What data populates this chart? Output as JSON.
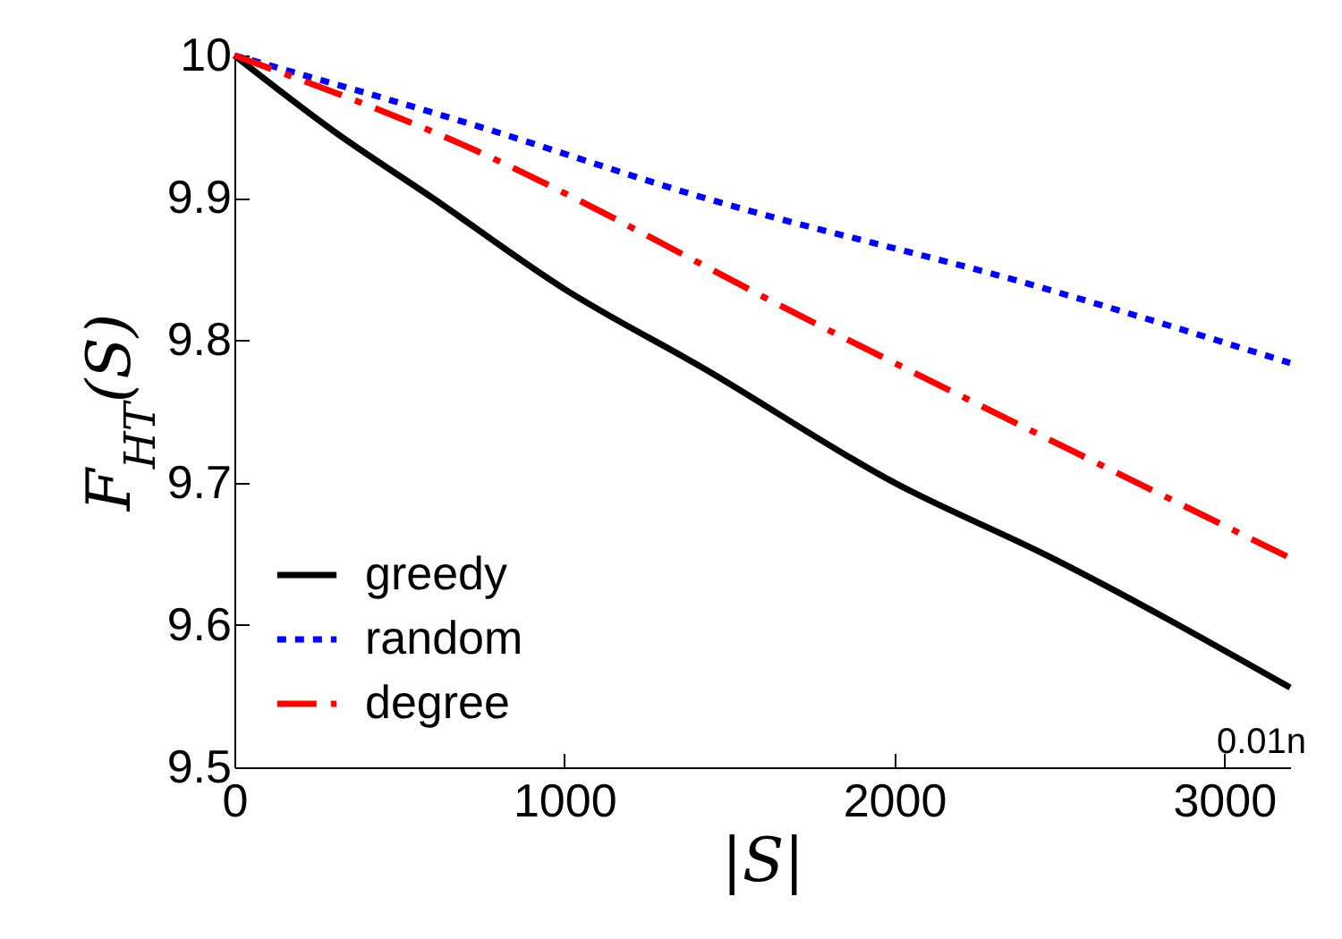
{
  "chart_data": {
    "type": "line",
    "xlabel": "|S|",
    "ylabel": "F$_{HT}$(S)",
    "xlim": [
      0,
      3200
    ],
    "ylim": [
      9.5,
      10
    ],
    "xticks": [
      0,
      1000,
      2000,
      3000
    ],
    "annotations": [
      "0.01n"
    ],
    "yticks": [
      9.5,
      9.6,
      9.7,
      9.8,
      9.9,
      10
    ],
    "grid": false,
    "legend": "bottom left",
    "marker": "none",
    "series": [
      {
        "name": "greedy",
        "color": "#000000",
        "line_style": "solid",
        "x": [
          0,
          300,
          600,
          1000,
          1424,
          2000,
          2470,
          3200
        ],
        "values": [
          10,
          9.947,
          9.9,
          9.836,
          9.78,
          9.7,
          9.648,
          9.556
        ]
      },
      {
        "name": "random",
        "color": "#0000ff",
        "line_style": "dotted",
        "x": [
          0,
          700,
          1423,
          2400,
          3200
        ],
        "values": [
          10,
          9.953,
          9.9,
          9.84,
          9.784
        ]
      },
      {
        "name": "degree",
        "color": "#ff0000",
        "line_style": "dashdot",
        "x": [
          0,
          626,
          1810,
          3200
        ],
        "values": [
          10,
          9.944,
          9.806,
          9.647
        ]
      }
    ]
  }
}
